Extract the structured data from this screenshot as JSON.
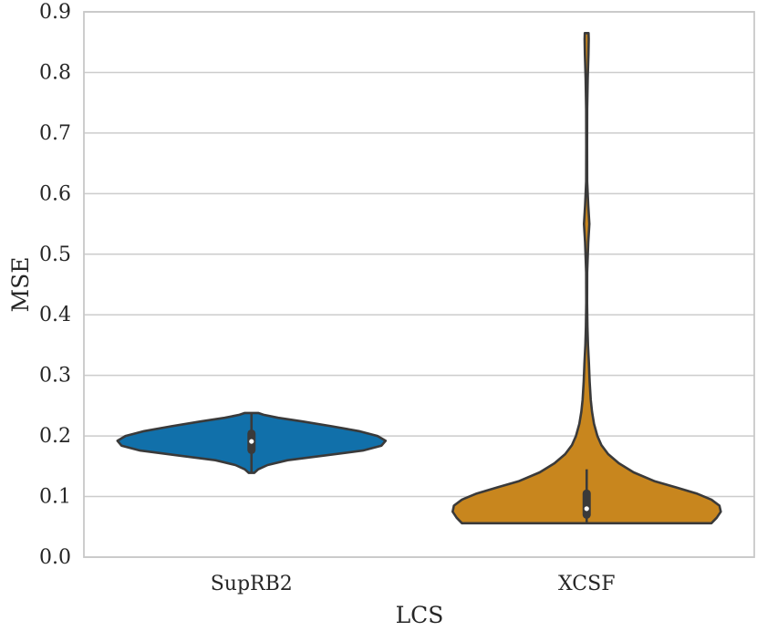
{
  "chart_data": {
    "type": "violin",
    "xlabel": "LCS",
    "ylabel": "MSE",
    "ylim": [
      0.0,
      0.9
    ],
    "yticks": [
      "0.0",
      "0.1",
      "0.2",
      "0.3",
      "0.4",
      "0.5",
      "0.6",
      "0.7",
      "0.8",
      "0.9"
    ],
    "grid": true,
    "categories": [
      "SupRB2",
      "XCSF"
    ],
    "series": [
      {
        "category": "SupRB2",
        "color": "#1170aa",
        "min": 0.139,
        "max": 0.238,
        "q1": 0.177,
        "median": 0.191,
        "q3": 0.204,
        "whisker_low": 0.139,
        "whisker_high": 0.238,
        "density": [
          [
            0.139,
            0.02
          ],
          [
            0.145,
            0.05
          ],
          [
            0.152,
            0.12
          ],
          [
            0.16,
            0.27
          ],
          [
            0.168,
            0.55
          ],
          [
            0.176,
            0.83
          ],
          [
            0.184,
            0.97
          ],
          [
            0.192,
            1.0
          ],
          [
            0.2,
            0.94
          ],
          [
            0.208,
            0.8
          ],
          [
            0.216,
            0.6
          ],
          [
            0.224,
            0.38
          ],
          [
            0.23,
            0.2
          ],
          [
            0.235,
            0.09
          ],
          [
            0.238,
            0.05
          ]
        ]
      },
      {
        "category": "XCSF",
        "color": "#c8861e",
        "min": 0.056,
        "max": 0.865,
        "q1": 0.07,
        "median": 0.08,
        "q3": 0.105,
        "whisker_low": 0.056,
        "whisker_high": 0.145,
        "density": [
          [
            0.056,
            0.93
          ],
          [
            0.065,
            0.97
          ],
          [
            0.075,
            1.0
          ],
          [
            0.085,
            0.99
          ],
          [
            0.095,
            0.93
          ],
          [
            0.105,
            0.82
          ],
          [
            0.115,
            0.67
          ],
          [
            0.125,
            0.51
          ],
          [
            0.14,
            0.35
          ],
          [
            0.155,
            0.24
          ],
          [
            0.17,
            0.16
          ],
          [
            0.185,
            0.11
          ],
          [
            0.2,
            0.08
          ],
          [
            0.22,
            0.055
          ],
          [
            0.24,
            0.04
          ],
          [
            0.26,
            0.03
          ],
          [
            0.29,
            0.022
          ],
          [
            0.32,
            0.017
          ],
          [
            0.35,
            0.01
          ],
          [
            0.38,
            0.006
          ],
          [
            0.42,
            0.003
          ],
          [
            0.47,
            0.004
          ],
          [
            0.52,
            0.012
          ],
          [
            0.55,
            0.02
          ],
          [
            0.58,
            0.012
          ],
          [
            0.62,
            0.004
          ],
          [
            0.68,
            0.003
          ],
          [
            0.74,
            0.004
          ],
          [
            0.79,
            0.008
          ],
          [
            0.83,
            0.013
          ],
          [
            0.855,
            0.015
          ],
          [
            0.865,
            0.014
          ]
        ]
      }
    ]
  }
}
